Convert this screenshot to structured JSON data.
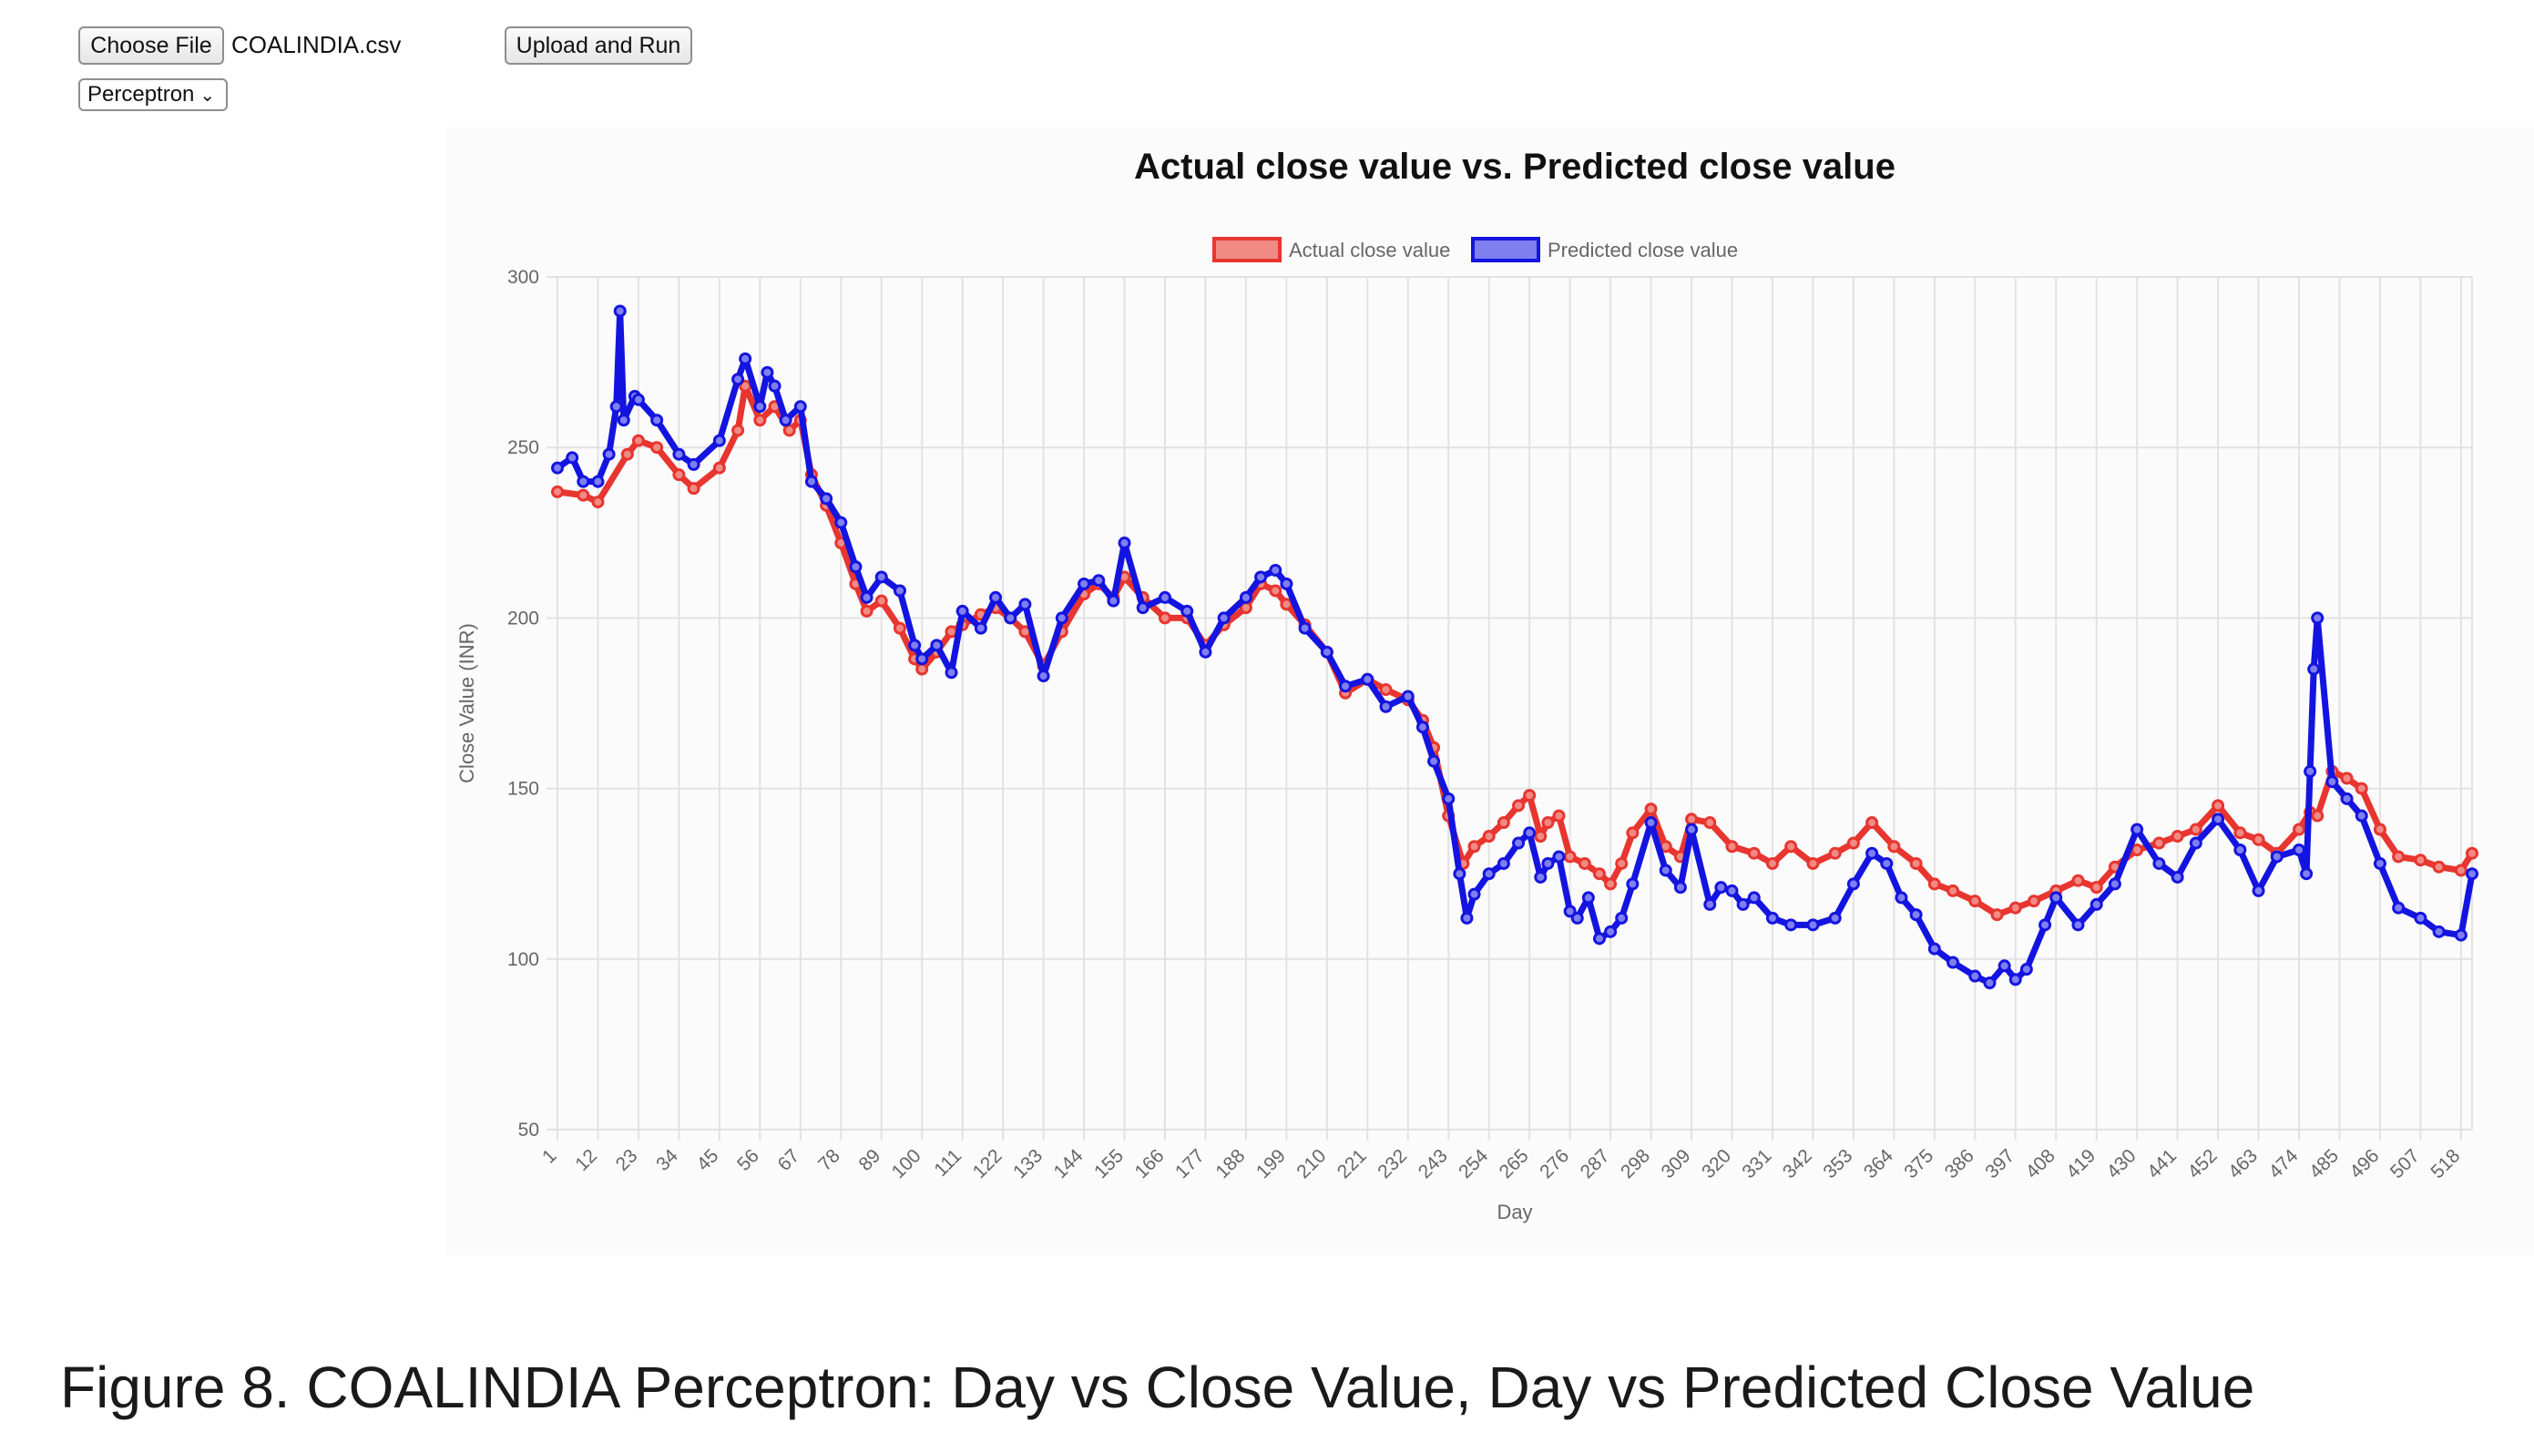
{
  "controls": {
    "choose_file_label": "Choose File",
    "file_name": "COALINDIA.csv",
    "upload_run_label": "Upload and Run",
    "model_selected": "Perceptron"
  },
  "caption": "Figure 8. COALINDIA Perceptron: Day vs Close Value, Day vs Predicted Close Value",
  "chart_data": {
    "type": "line",
    "title": "Actual close value vs. Predicted close value",
    "xlabel": "Day",
    "ylabel": "Close Value (INR)",
    "ylim": [
      50,
      300
    ],
    "yticks": [
      50,
      100,
      150,
      200,
      250,
      300
    ],
    "xlim": [
      1,
      521
    ],
    "xticks": [
      1,
      12,
      23,
      34,
      45,
      56,
      67,
      78,
      89,
      100,
      111,
      122,
      133,
      144,
      155,
      166,
      177,
      188,
      199,
      210,
      221,
      232,
      243,
      254,
      265,
      276,
      287,
      298,
      309,
      320,
      331,
      342,
      353,
      364,
      375,
      386,
      397,
      408,
      419,
      430,
      441,
      452,
      463,
      474,
      485,
      496,
      507,
      518
    ],
    "grid": true,
    "legend_position": "top",
    "series": [
      {
        "name": "Actual close value",
        "color": "#e8352f",
        "fill": "#f08a85",
        "x": [
          1,
          8,
          12,
          20,
          23,
          28,
          34,
          38,
          45,
          50,
          52,
          56,
          60,
          64,
          67,
          70,
          74,
          78,
          82,
          85,
          89,
          94,
          98,
          100,
          104,
          108,
          111,
          116,
          120,
          124,
          128,
          133,
          138,
          144,
          148,
          152,
          155,
          160,
          166,
          172,
          177,
          182,
          188,
          192,
          196,
          199,
          204,
          210,
          215,
          221,
          226,
          232,
          236,
          239,
          243,
          247,
          250,
          254,
          258,
          262,
          265,
          268,
          270,
          273,
          276,
          280,
          284,
          287,
          290,
          293,
          298,
          302,
          306,
          309,
          314,
          320,
          326,
          331,
          336,
          342,
          348,
          353,
          358,
          364,
          370,
          375,
          380,
          386,
          392,
          397,
          402,
          408,
          414,
          419,
          424,
          430,
          436,
          441,
          446,
          452,
          458,
          463,
          468,
          474,
          477,
          479,
          483,
          487,
          491,
          496,
          501,
          507,
          512,
          518,
          521
        ],
        "values": [
          237,
          236,
          234,
          248,
          252,
          250,
          242,
          238,
          244,
          255,
          268,
          258,
          262,
          255,
          258,
          242,
          233,
          222,
          210,
          202,
          205,
          197,
          188,
          185,
          190,
          196,
          198,
          201,
          203,
          200,
          196,
          186,
          196,
          207,
          210,
          206,
          212,
          206,
          200,
          200,
          192,
          198,
          203,
          210,
          208,
          204,
          198,
          190,
          178,
          182,
          179,
          176,
          170,
          162,
          142,
          128,
          133,
          136,
          140,
          145,
          148,
          136,
          140,
          142,
          130,
          128,
          125,
          122,
          128,
          137,
          144,
          133,
          130,
          141,
          140,
          133,
          131,
          128,
          133,
          128,
          131,
          134,
          140,
          133,
          128,
          122,
          120,
          117,
          113,
          115,
          117,
          120,
          123,
          121,
          127,
          132,
          134,
          136,
          138,
          145,
          137,
          135,
          131,
          138,
          143,
          142,
          155,
          153,
          150,
          138,
          130,
          129,
          127,
          126,
          131
        ]
      },
      {
        "name": "Predicted close value",
        "color": "#1414e0",
        "fill": "#7f7ff0",
        "x": [
          1,
          5,
          8,
          12,
          15,
          17,
          18,
          19,
          22,
          23,
          28,
          34,
          38,
          45,
          50,
          52,
          56,
          58,
          60,
          63,
          67,
          70,
          74,
          78,
          82,
          85,
          89,
          94,
          98,
          100,
          104,
          108,
          111,
          116,
          120,
          124,
          128,
          133,
          138,
          144,
          148,
          152,
          155,
          160,
          166,
          172,
          177,
          182,
          188,
          192,
          196,
          199,
          204,
          210,
          215,
          221,
          226,
          232,
          236,
          239,
          243,
          246,
          248,
          250,
          254,
          258,
          262,
          265,
          268,
          270,
          273,
          276,
          278,
          281,
          284,
          287,
          290,
          293,
          298,
          302,
          306,
          309,
          314,
          317,
          320,
          323,
          326,
          331,
          336,
          342,
          348,
          353,
          358,
          362,
          366,
          370,
          375,
          380,
          386,
          390,
          394,
          397,
          400,
          405,
          408,
          414,
          419,
          424,
          430,
          436,
          441,
          446,
          452,
          458,
          463,
          468,
          474,
          476,
          477,
          478,
          479,
          483,
          487,
          491,
          496,
          501,
          507,
          512,
          518,
          521
        ],
        "values": [
          244,
          247,
          240,
          240,
          248,
          262,
          290,
          258,
          265,
          264,
          258,
          248,
          245,
          252,
          270,
          276,
          262,
          272,
          268,
          258,
          262,
          240,
          235,
          228,
          215,
          206,
          212,
          208,
          192,
          188,
          192,
          184,
          202,
          197,
          206,
          200,
          204,
          183,
          200,
          210,
          211,
          205,
          222,
          203,
          206,
          202,
          190,
          200,
          206,
          212,
          214,
          210,
          197,
          190,
          180,
          182,
          174,
          177,
          168,
          158,
          147,
          125,
          112,
          119,
          125,
          128,
          134,
          137,
          124,
          128,
          130,
          114,
          112,
          118,
          106,
          108,
          112,
          122,
          140,
          126,
          121,
          138,
          116,
          121,
          120,
          116,
          118,
          112,
          110,
          110,
          112,
          122,
          131,
          128,
          118,
          113,
          103,
          99,
          95,
          93,
          98,
          94,
          97,
          110,
          118,
          110,
          116,
          122,
          138,
          128,
          124,
          134,
          141,
          132,
          120,
          130,
          132,
          125,
          155,
          185,
          200,
          152,
          147,
          142,
          128,
          115,
          112,
          108,
          107,
          125
        ]
      }
    ]
  }
}
